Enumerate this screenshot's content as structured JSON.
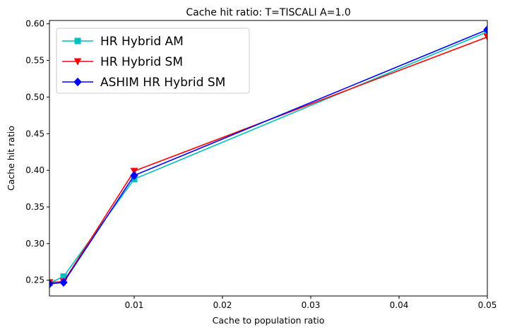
{
  "chart_data": {
    "type": "line",
    "title": "Cache hit ratio: T=TISCALI A=1.0",
    "xlabel": "Cache to population ratio",
    "ylabel": "Cache hit ratio",
    "xlim": [
      0.0004,
      0.05
    ],
    "ylim": [
      0.2285,
      0.6045
    ],
    "xticks": [
      0.01,
      0.02,
      0.03,
      0.04,
      0.05
    ],
    "xtick_labels": [
      "0.01",
      "0.02",
      "0.03",
      "0.04",
      "0.05"
    ],
    "yticks": [
      0.25,
      0.3,
      0.35,
      0.4,
      0.45,
      0.5,
      0.55,
      0.6
    ],
    "ytick_labels": [
      "0.25",
      "0.30",
      "0.35",
      "0.40",
      "0.45",
      "0.50",
      "0.55",
      "0.60"
    ],
    "grid": false,
    "legend": "top-left",
    "x": [
      0.0004,
      0.002,
      0.01,
      0.05
    ],
    "series": [
      {
        "name": "HR Hybrid AM",
        "values": [
          0.246,
          0.255,
          0.388,
          0.589
        ],
        "color": "#00bfbf",
        "marker": "square"
      },
      {
        "name": "HR Hybrid SM",
        "values": [
          0.247,
          0.248,
          0.399,
          0.582
        ],
        "color": "#ff0000",
        "marker": "triangle-down"
      },
      {
        "name": "ASHIM HR Hybrid SM",
        "values": [
          0.245,
          0.247,
          0.393,
          0.592
        ],
        "color": "#0000ff",
        "marker": "diamond"
      }
    ]
  }
}
